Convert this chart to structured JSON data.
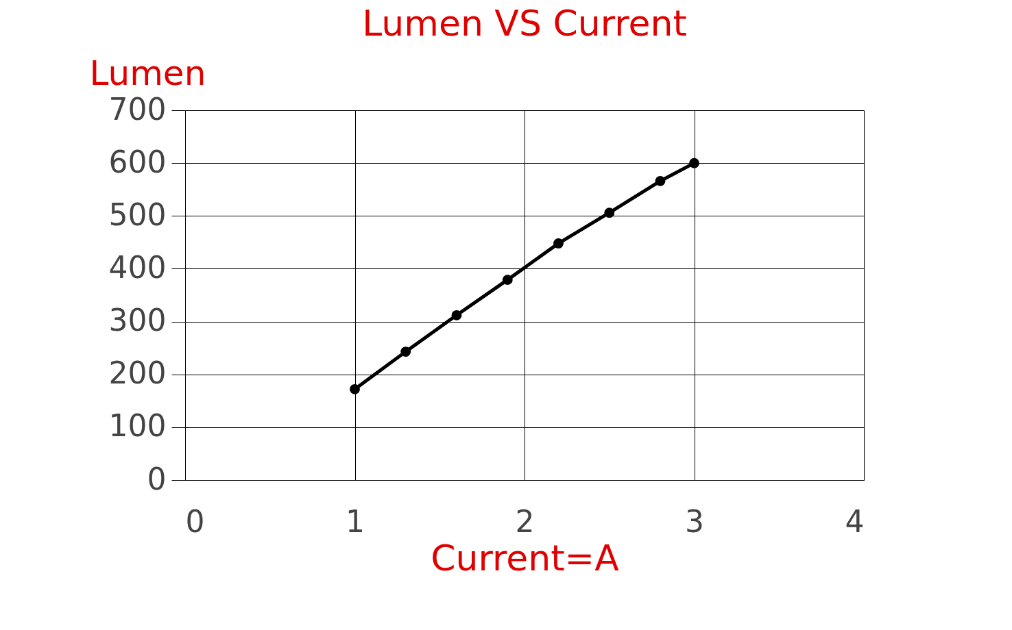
{
  "chart_data": {
    "type": "line",
    "title": "Lumen VS Current",
    "xlabel": "Current=A",
    "ylabel": "Lumen",
    "x": [
      1.0,
      1.3,
      1.6,
      1.9,
      2.2,
      2.5,
      2.8,
      3.0
    ],
    "series": [
      {
        "color": "#000000",
        "values": [
          172,
          243,
          312,
          379,
          448,
          506,
          566,
          600
        ]
      }
    ],
    "xlim": [
      0,
      4
    ],
    "xticks": [
      0,
      1,
      2,
      3,
      4
    ],
    "ylim": [
      0,
      700
    ],
    "yticks": [
      0,
      100,
      200,
      300,
      400,
      500,
      600,
      700
    ],
    "grid": true,
    "marker": "circle",
    "line_style": "solid"
  }
}
